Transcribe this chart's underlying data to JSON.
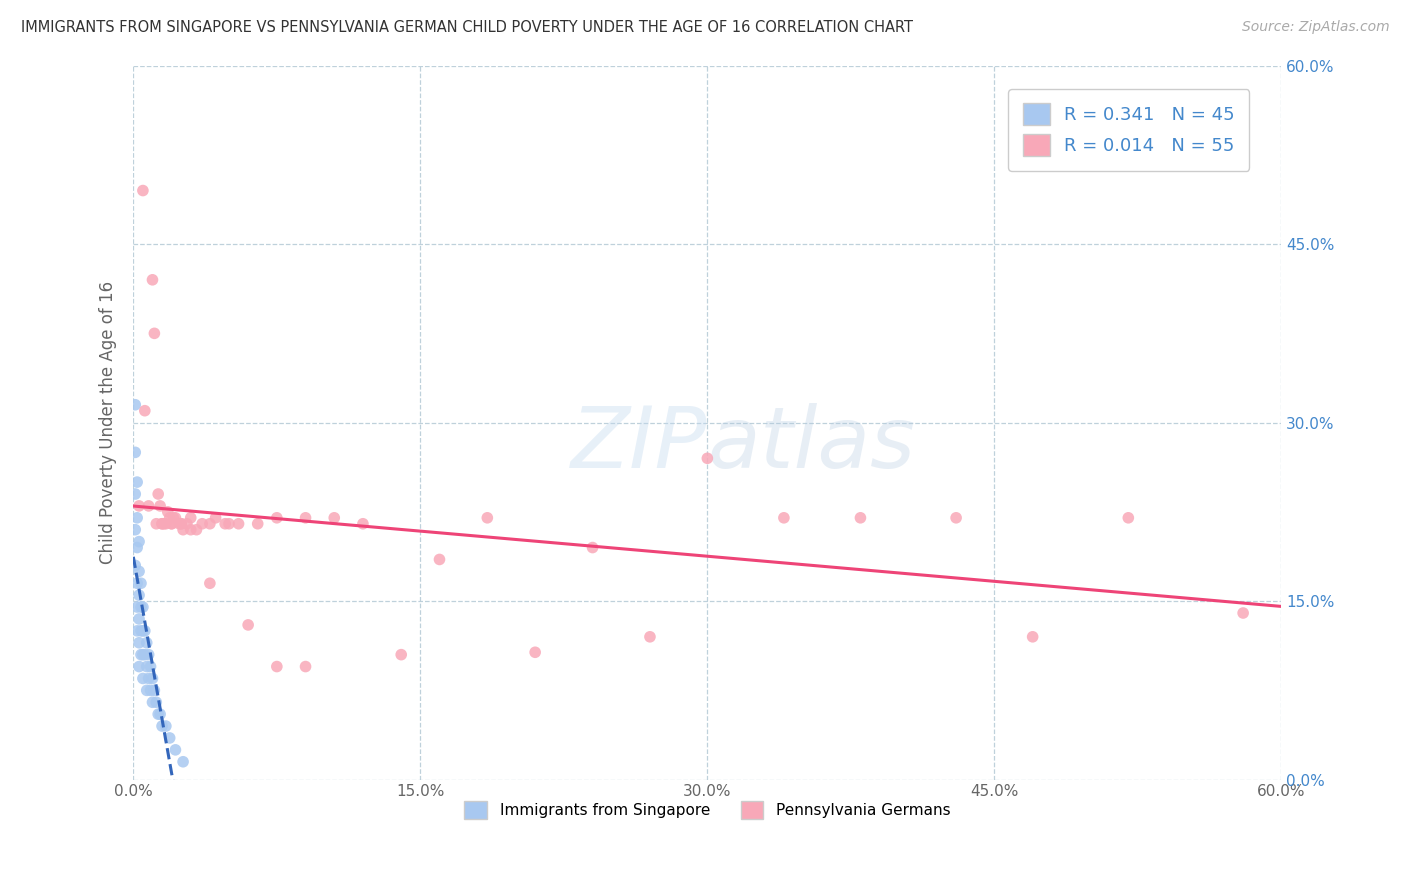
{
  "title": "IMMIGRANTS FROM SINGAPORE VS PENNSYLVANIA GERMAN CHILD POVERTY UNDER THE AGE OF 16 CORRELATION CHART",
  "source": "Source: ZipAtlas.com",
  "ylabel": "Child Poverty Under the Age of 16",
  "R_singapore": 0.341,
  "N_singapore": 45,
  "R_pagerman": 0.014,
  "N_pagerman": 55,
  "singapore_color": "#a8c8f0",
  "pagerman_color": "#f8a8b8",
  "singapore_line_color": "#3366bb",
  "pagerman_line_color": "#ee4477",
  "legend_label_singapore": "Immigrants from Singapore",
  "legend_label_pagerman": "Pennsylvania Germans",
  "xlim": [
    0.0,
    0.6
  ],
  "ylim": [
    0.0,
    0.6
  ],
  "ticks": [
    0.0,
    0.15,
    0.3,
    0.45,
    0.6
  ],
  "tick_labels": [
    "0.0%",
    "15.0%",
    "30.0%",
    "45.0%",
    "60.0%"
  ],
  "singapore_x": [
    0.001,
    0.001,
    0.001,
    0.001,
    0.001,
    0.002,
    0.002,
    0.002,
    0.002,
    0.002,
    0.002,
    0.003,
    0.003,
    0.003,
    0.003,
    0.003,
    0.003,
    0.004,
    0.004,
    0.004,
    0.004,
    0.005,
    0.005,
    0.005,
    0.005,
    0.006,
    0.006,
    0.007,
    0.007,
    0.007,
    0.008,
    0.008,
    0.009,
    0.009,
    0.01,
    0.01,
    0.011,
    0.012,
    0.013,
    0.014,
    0.015,
    0.017,
    0.019,
    0.022,
    0.026
  ],
  "singapore_y": [
    0.315,
    0.275,
    0.24,
    0.21,
    0.18,
    0.25,
    0.22,
    0.195,
    0.165,
    0.145,
    0.125,
    0.2,
    0.175,
    0.155,
    0.135,
    0.115,
    0.095,
    0.165,
    0.145,
    0.125,
    0.105,
    0.145,
    0.125,
    0.105,
    0.085,
    0.125,
    0.105,
    0.115,
    0.095,
    0.075,
    0.105,
    0.085,
    0.095,
    0.075,
    0.085,
    0.065,
    0.075,
    0.065,
    0.055,
    0.055,
    0.045,
    0.045,
    0.035,
    0.025,
    0.015
  ],
  "pagerman_x": [
    0.003,
    0.005,
    0.006,
    0.008,
    0.01,
    0.011,
    0.013,
    0.014,
    0.015,
    0.016,
    0.017,
    0.018,
    0.019,
    0.02,
    0.021,
    0.022,
    0.024,
    0.025,
    0.026,
    0.028,
    0.03,
    0.033,
    0.036,
    0.04,
    0.043,
    0.048,
    0.055,
    0.065,
    0.075,
    0.09,
    0.105,
    0.12,
    0.14,
    0.16,
    0.185,
    0.21,
    0.24,
    0.27,
    0.3,
    0.34,
    0.38,
    0.43,
    0.47,
    0.52,
    0.58,
    0.012,
    0.015,
    0.02,
    0.025,
    0.03,
    0.04,
    0.05,
    0.06,
    0.075,
    0.09
  ],
  "pagerman_y": [
    0.23,
    0.495,
    0.31,
    0.23,
    0.42,
    0.375,
    0.24,
    0.23,
    0.215,
    0.215,
    0.215,
    0.225,
    0.22,
    0.215,
    0.22,
    0.22,
    0.215,
    0.215,
    0.21,
    0.215,
    0.21,
    0.21,
    0.215,
    0.215,
    0.22,
    0.215,
    0.215,
    0.215,
    0.22,
    0.22,
    0.22,
    0.215,
    0.105,
    0.185,
    0.22,
    0.107,
    0.195,
    0.12,
    0.27,
    0.22,
    0.22,
    0.22,
    0.12,
    0.22,
    0.14,
    0.215,
    0.215,
    0.215,
    0.215,
    0.22,
    0.165,
    0.215,
    0.13,
    0.095,
    0.095
  ]
}
